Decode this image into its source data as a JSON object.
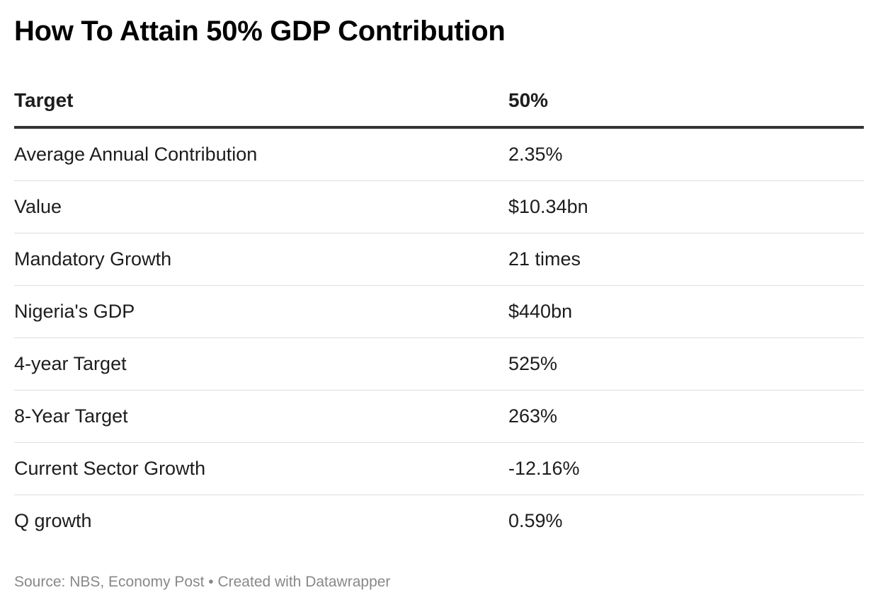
{
  "chart_data": {
    "type": "table",
    "title": "How To Attain 50% GDP Contribution",
    "columns": [
      "Target",
      "50%"
    ],
    "rows": [
      {
        "label": "Average Annual Contribution",
        "value": "2.35%"
      },
      {
        "label": "Value",
        "value": "$10.34bn"
      },
      {
        "label": "Mandatory Growth",
        "value": "21 times"
      },
      {
        "label": "Nigeria's GDP",
        "value": "$440bn"
      },
      {
        "label": "4-year Target",
        "value": "525%"
      },
      {
        "label": "8-Year Target",
        "value": "263%"
      },
      {
        "label": "Current Sector Growth",
        "value": "-12.16%"
      },
      {
        "label": "Q growth",
        "value": "0.59%"
      }
    ],
    "footer": "Source: NBS, Economy Post • Created with Datawrapper"
  }
}
